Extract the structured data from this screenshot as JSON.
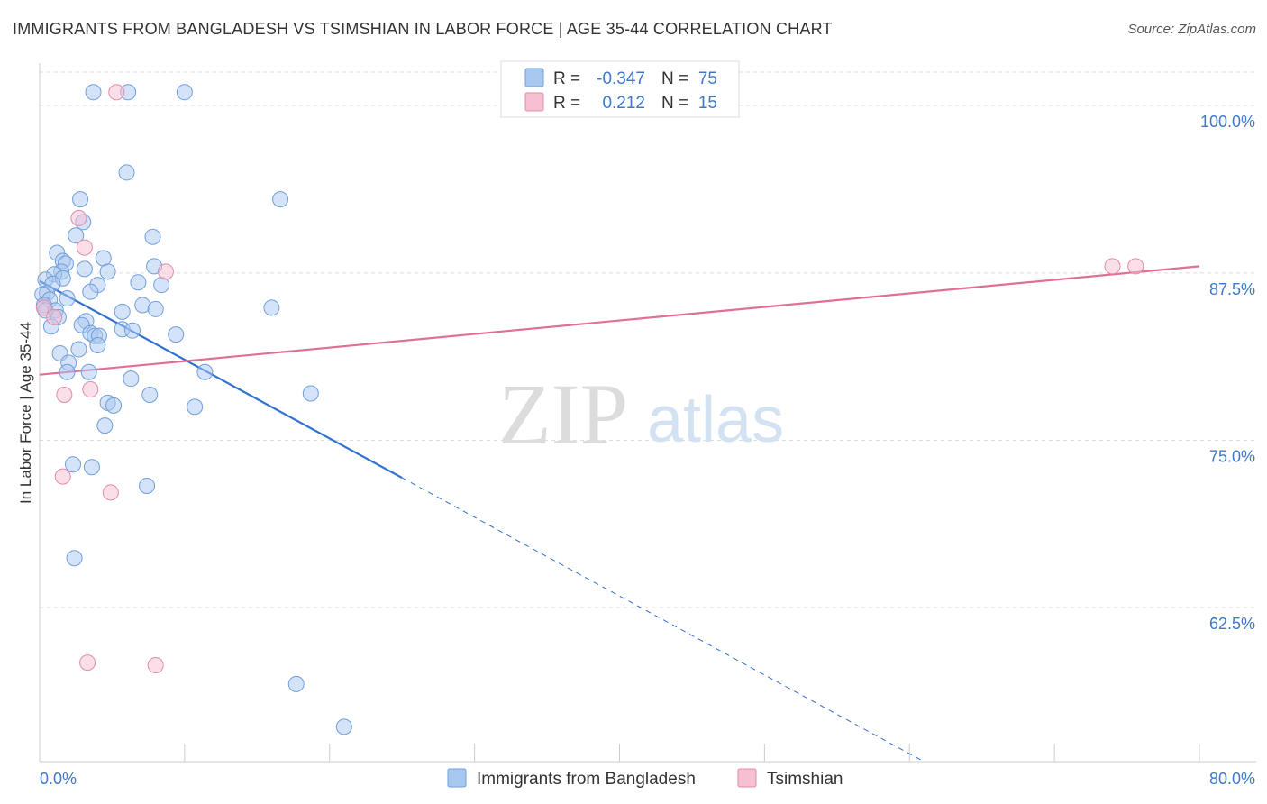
{
  "title": "IMMIGRANTS FROM BANGLADESH VS TSIMSHIAN IN LABOR FORCE | AGE 35-44 CORRELATION CHART",
  "source": "Source: ZipAtlas.com",
  "watermark": {
    "zip": "ZIP",
    "atlas": "atlas"
  },
  "colors": {
    "blue_fill": "#a9c8f0",
    "blue_stroke": "#6f9fdc",
    "blue_line": "#2f72d0",
    "pink_fill": "#f7bfd2",
    "pink_stroke": "#e38aac",
    "pink_line": "#e07098",
    "tick_text": "#3f78c8",
    "grid": "#dddddd"
  },
  "legend": {
    "rows": [
      {
        "r_label": "R =",
        "r_value": "-0.347",
        "n_label": "N =",
        "n_value": "75",
        "series": "blue"
      },
      {
        "r_label": "R =",
        "r_value": "0.212",
        "n_label": "N =",
        "n_value": "15",
        "series": "pink"
      }
    ]
  },
  "chart_data": {
    "type": "scatter",
    "title": "IMMIGRANTS FROM BANGLADESH VS TSIMSHIAN IN LABOR FORCE | AGE 35-44 CORRELATION CHART",
    "xlabel": "",
    "ylabel": "In Labor Force | Age 35-44",
    "xlim": [
      0,
      80
    ],
    "ylim": [
      51,
      102.5
    ],
    "x_tick_labels": [
      "0.0%",
      "80.0%"
    ],
    "y_ticks": [
      {
        "value": 100.0,
        "label": "100.0%"
      },
      {
        "value": 87.5,
        "label": "87.5%"
      },
      {
        "value": 75.0,
        "label": "75.0%"
      },
      {
        "value": 62.5,
        "label": "62.5%"
      }
    ],
    "series": [
      {
        "name": "Immigrants from Bangladesh",
        "color": "blue",
        "trend": {
          "x0": 0,
          "y0": 86.9,
          "x1": 25.0,
          "y1": 72.2,
          "dash_to_x": 61.0,
          "dash_to_y": 51.0
        },
        "points": [
          [
            3.7,
            101.0
          ],
          [
            6.1,
            101.0
          ],
          [
            10.0,
            101.0
          ],
          [
            6.0,
            95.0
          ],
          [
            2.8,
            93.0
          ],
          [
            16.6,
            93.0
          ],
          [
            3.0,
            91.3
          ],
          [
            2.5,
            90.3
          ],
          [
            7.8,
            90.2
          ],
          [
            1.2,
            89.0
          ],
          [
            1.6,
            88.4
          ],
          [
            1.8,
            88.2
          ],
          [
            4.4,
            88.6
          ],
          [
            3.1,
            87.8
          ],
          [
            7.9,
            88.0
          ],
          [
            1.5,
            87.6
          ],
          [
            1.0,
            87.4
          ],
          [
            1.6,
            87.1
          ],
          [
            4.7,
            87.6
          ],
          [
            0.4,
            87.0
          ],
          [
            0.9,
            86.7
          ],
          [
            6.8,
            86.8
          ],
          [
            8.4,
            86.6
          ],
          [
            4.0,
            86.6
          ],
          [
            3.5,
            86.1
          ],
          [
            0.5,
            86.0
          ],
          [
            0.2,
            85.9
          ],
          [
            0.7,
            85.5
          ],
          [
            1.9,
            85.6
          ],
          [
            0.3,
            85.1
          ],
          [
            0.4,
            84.7
          ],
          [
            7.1,
            85.1
          ],
          [
            1.1,
            84.7
          ],
          [
            8.0,
            84.8
          ],
          [
            5.7,
            84.6
          ],
          [
            16.0,
            84.9
          ],
          [
            1.3,
            84.2
          ],
          [
            3.2,
            83.9
          ],
          [
            0.8,
            83.5
          ],
          [
            2.9,
            83.6
          ],
          [
            5.7,
            83.3
          ],
          [
            6.4,
            83.2
          ],
          [
            3.5,
            83.0
          ],
          [
            9.4,
            82.9
          ],
          [
            3.8,
            82.8
          ],
          [
            4.1,
            82.8
          ],
          [
            4.0,
            82.1
          ],
          [
            2.7,
            81.8
          ],
          [
            1.4,
            81.5
          ],
          [
            2.0,
            80.8
          ],
          [
            11.4,
            80.1
          ],
          [
            1.9,
            80.1
          ],
          [
            3.4,
            80.1
          ],
          [
            6.3,
            79.6
          ],
          [
            18.7,
            78.5
          ],
          [
            7.6,
            78.4
          ],
          [
            4.7,
            77.8
          ],
          [
            5.1,
            77.6
          ],
          [
            10.7,
            77.5
          ],
          [
            4.5,
            76.1
          ],
          [
            2.3,
            73.2
          ],
          [
            3.6,
            73.0
          ],
          [
            7.4,
            71.6
          ],
          [
            2.4,
            66.2
          ],
          [
            17.7,
            56.8
          ],
          [
            21.0,
            53.6
          ]
        ]
      },
      {
        "name": "Tsimshian",
        "color": "pink",
        "trend": {
          "x0": 0,
          "y0": 79.9,
          "x1": 80.0,
          "y1": 88.0
        },
        "points": [
          [
            5.3,
            101.0
          ],
          [
            2.7,
            91.6
          ],
          [
            3.1,
            89.4
          ],
          [
            8.7,
            87.6
          ],
          [
            0.3,
            84.9
          ],
          [
            1.0,
            84.2
          ],
          [
            3.5,
            78.8
          ],
          [
            1.7,
            78.4
          ],
          [
            1.6,
            72.3
          ],
          [
            4.9,
            71.1
          ],
          [
            3.3,
            58.4
          ],
          [
            8.0,
            58.2
          ],
          [
            74.0,
            88.0
          ],
          [
            75.6,
            88.0
          ]
        ]
      }
    ]
  },
  "bottom_legend": [
    {
      "label": "Immigrants from Bangladesh",
      "series": "blue"
    },
    {
      "label": "Tsimshian",
      "series": "pink"
    }
  ]
}
